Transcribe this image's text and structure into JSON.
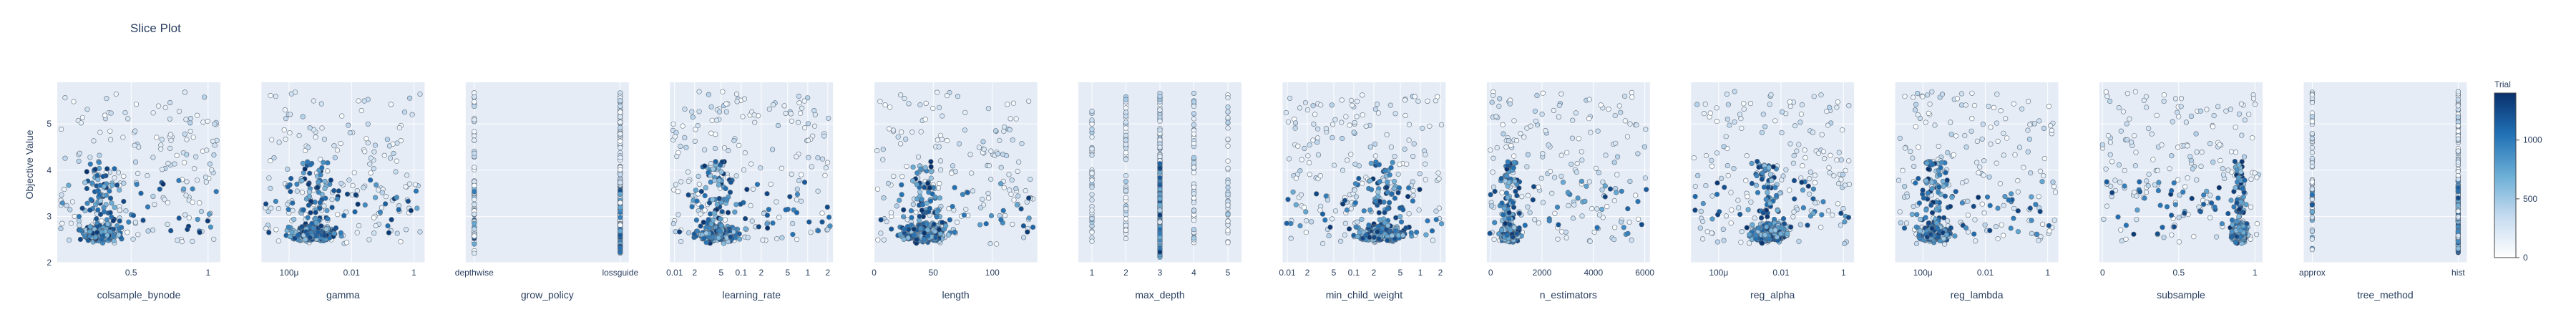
{
  "title": "Slice Plot",
  "chart_data": {
    "type": "scatter",
    "title": "Slice Plot",
    "ylabel": "Objective Value",
    "ylim": [
      2,
      5.9
    ],
    "yticks": [
      "2",
      "3",
      "4",
      "5"
    ],
    "colorbar": {
      "title": "Trial",
      "range": [
        0,
        1400
      ],
      "ticks": [
        "0",
        "500",
        "1000"
      ],
      "colorscale": [
        "#ffffff",
        "#c6dbef",
        "#6baed6",
        "#2171b5",
        "#08306b"
      ]
    },
    "grid": true,
    "marker_outline": "#5f6c7b",
    "panels": [
      {
        "xlabel": "colsample_bynode",
        "xscale": "linear",
        "xrange": [
          0.02,
          1.08
        ],
        "ticks": [
          [
            "0.5",
            0.5
          ],
          [
            "1",
            1
          ]
        ],
        "cluster": {
          "x": [
            0.05,
            0.55
          ],
          "center": 0.3,
          "spread": 0.1
        }
      },
      {
        "xlabel": "gamma",
        "xscale": "log",
        "xrange": [
          1.3e-05,
          2.2
        ],
        "ticks": [
          [
            "100μ",
            0.0001
          ],
          [
            "0.01",
            0.01
          ],
          [
            "1",
            1
          ]
        ],
        "cluster": {
          "x": [
            2e-05,
            0.02
          ],
          "center": 0.0005,
          "spread": 0.8
        }
      },
      {
        "xlabel": "grow_policy",
        "xscale": "category",
        "categories": [
          "depthwise",
          "lossguide"
        ],
        "ticks": [
          [
            "depthwise",
            0
          ],
          [
            "lossguide",
            1
          ]
        ]
      },
      {
        "xlabel": "learning_rate",
        "xscale": "log",
        "xrange": [
          0.0085,
          2.4
        ],
        "ticks": [
          [
            "0.01",
            0.01
          ],
          [
            "2",
            0.02
          ],
          [
            "5",
            0.05
          ],
          [
            "0.1",
            0.1
          ],
          [
            "2",
            0.2
          ],
          [
            "5",
            0.5
          ],
          [
            "1",
            1
          ],
          [
            "2",
            2
          ]
        ],
        "cluster": {
          "x": [
            0.01,
            0.2
          ],
          "center": 0.025,
          "spread": 0.4
        }
      },
      {
        "xlabel": "length",
        "xscale": "linear",
        "xrange": [
          0,
          138
        ],
        "ticks": [
          [
            "0",
            0
          ],
          [
            "50",
            50
          ],
          [
            "100",
            100
          ]
        ],
        "cluster": {
          "x": [
            5,
            80
          ],
          "center": 40,
          "spread": 12
        }
      },
      {
        "xlabel": "max_depth",
        "xscale": "linear",
        "xrange": [
          0.6,
          5.4
        ],
        "ticks": [
          [
            "1",
            1
          ],
          [
            "2",
            2
          ],
          [
            "3",
            3
          ],
          [
            "4",
            4
          ],
          [
            "5",
            5
          ]
        ],
        "discrete": [
          1,
          2,
          3,
          4,
          5
        ]
      },
      {
        "xlabel": "min_child_weight",
        "xscale": "log",
        "xrange": [
          0.0085,
          2.4
        ],
        "ticks": [
          [
            "0.01",
            0.01
          ],
          [
            "2",
            0.02
          ],
          [
            "5",
            0.05
          ],
          [
            "0.1",
            0.1
          ],
          [
            "2",
            0.2
          ],
          [
            "5",
            0.5
          ],
          [
            "1",
            1
          ],
          [
            "2",
            2
          ]
        ],
        "cluster": {
          "x": [
            0.05,
            1.5
          ],
          "center": 0.3,
          "spread": 0.4
        }
      },
      {
        "xlabel": "n_estimators",
        "xscale": "linear",
        "xrange": [
          -150,
          6200
        ],
        "ticks": [
          [
            "0",
            0
          ],
          [
            "2000",
            2000
          ],
          [
            "4000",
            4000
          ],
          [
            "6000",
            6000
          ]
        ],
        "cluster": {
          "x": [
            50,
            1500
          ],
          "center": 600,
          "spread": 350
        }
      },
      {
        "xlabel": "reg_alpha",
        "xscale": "log",
        "xrange": [
          1.3e-05,
          2.2
        ],
        "ticks": [
          [
            "100μ",
            0.0001
          ],
          [
            "0.01",
            0.01
          ],
          [
            "1",
            1
          ]
        ],
        "cluster": {
          "x": [
            0.0003,
            0.05
          ],
          "center": 0.005,
          "spread": 0.6
        }
      },
      {
        "xlabel": "reg_lambda",
        "xscale": "log",
        "xrange": [
          1.3e-05,
          2.2
        ],
        "ticks": [
          [
            "100μ",
            0.0001
          ],
          [
            "0.01",
            0.01
          ],
          [
            "1",
            1
          ]
        ],
        "cluster": {
          "x": [
            2e-05,
            0.003
          ],
          "center": 0.0002,
          "spread": 0.6
        }
      },
      {
        "xlabel": "subsample",
        "xscale": "linear",
        "xrange": [
          -0.02,
          1.05
        ],
        "ticks": [
          [
            "0",
            0
          ],
          [
            "0.5",
            0.5
          ],
          [
            "1",
            1
          ]
        ],
        "cluster": {
          "x": [
            0.8,
            1.0
          ],
          "center": 0.92,
          "spread": 0.05
        }
      },
      {
        "xlabel": "tree_method",
        "xscale": "category",
        "categories": [
          "approx",
          "hist"
        ],
        "ticks": [
          [
            "approx",
            0
          ],
          [
            "hist",
            1
          ]
        ]
      }
    ]
  }
}
